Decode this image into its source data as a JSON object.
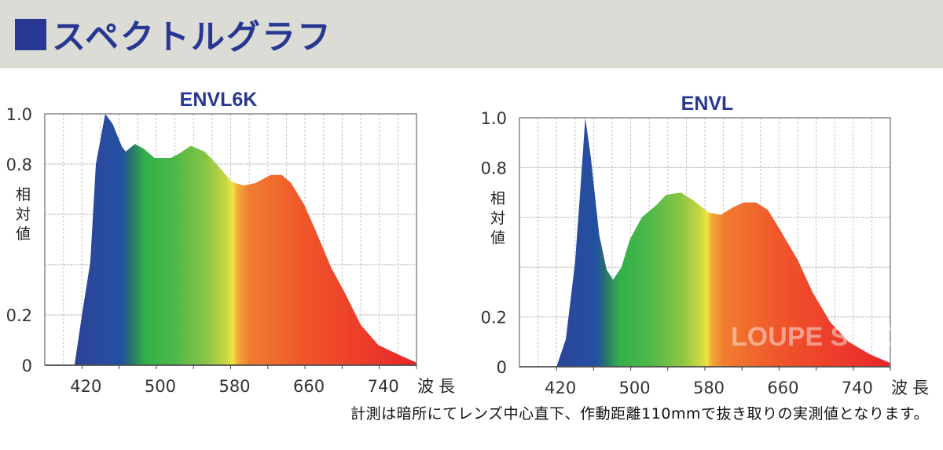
{
  "header": {
    "title": "スペクトルグラフ",
    "color": "#283791",
    "background": "#dcdcd7"
  },
  "footnote": "計測は暗所にてレンズ中心直下、作動距離110mmで抜き取りの実測値となります。",
  "watermark": "LOUPE STUDIO",
  "chart_data": [
    {
      "type": "area",
      "title": "ENVL6K",
      "ylabel": "相対値",
      "xlabel": "波長",
      "xlim": [
        380,
        780
      ],
      "ylim": [
        0,
        1.0
      ],
      "xticks": [
        420,
        500,
        580,
        660,
        740
      ],
      "yticks": [
        "0",
        "0.2",
        "0.8",
        "1.0"
      ],
      "ytick_values": [
        0,
        0.2,
        0.8,
        1.0
      ],
      "grid": true,
      "fill": "spectral gradient",
      "x": [
        412,
        420,
        429,
        435,
        445,
        453,
        463,
        467,
        477,
        487,
        498,
        516,
        526,
        537,
        552,
        565,
        581,
        594,
        607,
        623,
        635,
        645,
        659,
        671,
        688,
        704,
        720,
        739,
        762,
        780
      ],
      "y": [
        0,
        0.2,
        0.41,
        0.8,
        1.0,
        0.96,
        0.87,
        0.85,
        0.88,
        0.86,
        0.825,
        0.825,
        0.845,
        0.873,
        0.85,
        0.8,
        0.73,
        0.715,
        0.725,
        0.757,
        0.757,
        0.725,
        0.64,
        0.54,
        0.39,
        0.28,
        0.16,
        0.08,
        0.04,
        0.01
      ]
    },
    {
      "type": "area",
      "title": "ENVL",
      "ylabel": "相対値",
      "xlabel": "波長",
      "xlim": [
        380,
        780
      ],
      "ylim": [
        0,
        1.0
      ],
      "xticks": [
        420,
        500,
        580,
        660,
        740
      ],
      "yticks": [
        "0",
        "0.2",
        "0.8",
        "1.0"
      ],
      "ytick_values": [
        0,
        0.2,
        0.8,
        1.0
      ],
      "grid": true,
      "fill": "spectral gradient",
      "x": [
        420,
        430,
        440,
        446,
        451,
        457,
        466,
        474,
        481,
        490,
        499,
        512,
        528,
        538,
        554,
        567,
        584,
        597,
        610,
        622,
        635,
        648,
        661,
        680,
        696,
        715,
        735,
        758,
        780
      ],
      "y": [
        0,
        0.11,
        0.42,
        0.73,
        1.0,
        0.84,
        0.53,
        0.39,
        0.35,
        0.4,
        0.51,
        0.6,
        0.65,
        0.69,
        0.7,
        0.67,
        0.62,
        0.61,
        0.64,
        0.66,
        0.66,
        0.63,
        0.55,
        0.43,
        0.3,
        0.18,
        0.1,
        0.05,
        0.015
      ]
    }
  ]
}
